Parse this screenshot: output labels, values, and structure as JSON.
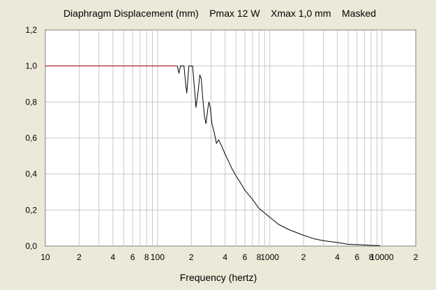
{
  "colors": {
    "background": "#ECE9D8",
    "plot_background": "#FFFFFF",
    "grid": "#C8C8C8",
    "curve": "#000000",
    "limit_line": "#A00000"
  },
  "chart_data": {
    "type": "line",
    "title": "Diaphragm Displacement (mm)    Pmax 12 W    Xmax 1,0 mm    Masked",
    "xlabel": "Frequency (hertz)",
    "ylabel": "",
    "x_scale": "log",
    "xlim": [
      10,
      20000
    ],
    "ylim": [
      0,
      1.2
    ],
    "grid": true,
    "x_ticks": [
      {
        "value": 10,
        "label": "10"
      },
      {
        "value": 20,
        "label": "2"
      },
      {
        "value": 40,
        "label": "4"
      },
      {
        "value": 60,
        "label": "6"
      },
      {
        "value": 80,
        "label": "8"
      },
      {
        "value": 100,
        "label": "100"
      },
      {
        "value": 200,
        "label": "2"
      },
      {
        "value": 400,
        "label": "4"
      },
      {
        "value": 600,
        "label": "6"
      },
      {
        "value": 800,
        "label": "8"
      },
      {
        "value": 1000,
        "label": "1000"
      },
      {
        "value": 2000,
        "label": "2"
      },
      {
        "value": 4000,
        "label": "4"
      },
      {
        "value": 6000,
        "label": "6"
      },
      {
        "value": 8000,
        "label": "8"
      },
      {
        "value": 10000,
        "label": "10000"
      },
      {
        "value": 20000,
        "label": "2"
      }
    ],
    "y_ticks": [
      {
        "value": 0,
        "label": "0,0"
      },
      {
        "value": 0.2,
        "label": "0,2"
      },
      {
        "value": 0.4,
        "label": "0,4"
      },
      {
        "value": 0.6,
        "label": "0,6"
      },
      {
        "value": 0.8,
        "label": "0,8"
      },
      {
        "value": 1.0,
        "label": "1,0"
      },
      {
        "value": 1.2,
        "label": "1,2"
      }
    ],
    "series": [
      {
        "color": "#A00000",
        "points": [
          [
            10,
            1.0
          ],
          [
            150,
            1.0
          ]
        ]
      },
      {
        "color": "#000000",
        "points": [
          [
            150,
            1.0
          ],
          [
            155,
            0.96
          ],
          [
            160,
            1.0
          ],
          [
            172,
            1.0
          ],
          [
            178,
            0.9
          ],
          [
            182,
            0.85
          ],
          [
            186,
            0.92
          ],
          [
            190,
            1.0
          ],
          [
            205,
            1.0
          ],
          [
            213,
            0.88
          ],
          [
            220,
            0.77
          ],
          [
            230,
            0.86
          ],
          [
            238,
            0.95
          ],
          [
            245,
            0.93
          ],
          [
            252,
            0.83
          ],
          [
            262,
            0.72
          ],
          [
            270,
            0.68
          ],
          [
            280,
            0.76
          ],
          [
            287,
            0.8
          ],
          [
            295,
            0.77
          ],
          [
            305,
            0.68
          ],
          [
            320,
            0.63
          ],
          [
            335,
            0.57
          ],
          [
            350,
            0.59
          ],
          [
            370,
            0.56
          ],
          [
            400,
            0.51
          ],
          [
            430,
            0.47
          ],
          [
            460,
            0.43
          ],
          [
            500,
            0.39
          ],
          [
            550,
            0.35
          ],
          [
            600,
            0.31
          ],
          [
            700,
            0.26
          ],
          [
            800,
            0.21
          ],
          [
            1000,
            0.16
          ],
          [
            1200,
            0.12
          ],
          [
            1500,
            0.09
          ],
          [
            2000,
            0.06
          ],
          [
            2500,
            0.04
          ],
          [
            3000,
            0.03
          ],
          [
            4000,
            0.02
          ],
          [
            5000,
            0.01
          ],
          [
            6000,
            0.008
          ],
          [
            8000,
            0.004
          ],
          [
            9600,
            0.003
          ]
        ]
      }
    ]
  }
}
